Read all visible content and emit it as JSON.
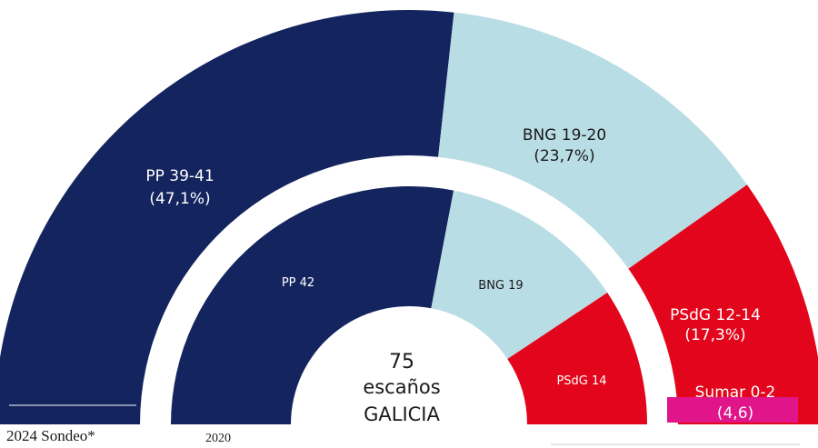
{
  "chart_data": [
    {
      "type": "pie",
      "name_label": "2024 Sondeo*",
      "slices": [
        {
          "party": "PP",
          "label": "PP 39-41",
          "share_text": "(47,1%)",
          "value": 47.1,
          "color": "#13245e",
          "text_color": "#ffffff"
        },
        {
          "party": "BNG",
          "label": "BNG 19-20",
          "share_text": "(23,7%)",
          "value": 23.7,
          "color": "#b9dde4",
          "text_color": "#1a1a1a"
        },
        {
          "party": "PSdG",
          "label": "PSdG 12-14",
          "share_text": "(17,3%)",
          "value": 17.3,
          "color": "#e3051b",
          "text_color": "#ffffff"
        },
        {
          "party": "Sumar",
          "label": "Sumar 0-2",
          "share_text": "(4,6)",
          "value": 4.6,
          "color": "#e0158a",
          "text_color": "#ffffff"
        }
      ]
    },
    {
      "type": "pie",
      "name_label": "2020",
      "slices": [
        {
          "party": "PP",
          "label": "PP 42",
          "seats": 42,
          "color": "#13245e",
          "text_color": "#ffffff"
        },
        {
          "party": "BNG",
          "label": "BNG 19",
          "seats": 19,
          "color": "#b9dde4",
          "text_color": "#1a1a1a"
        },
        {
          "party": "PSdG",
          "label": "PSdG 14",
          "seats": 14,
          "color": "#e3051b",
          "text_color": "#ffffff"
        }
      ]
    }
  ],
  "center": {
    "seats": "75",
    "seats_word": "escaños",
    "region": "GALICIA"
  }
}
